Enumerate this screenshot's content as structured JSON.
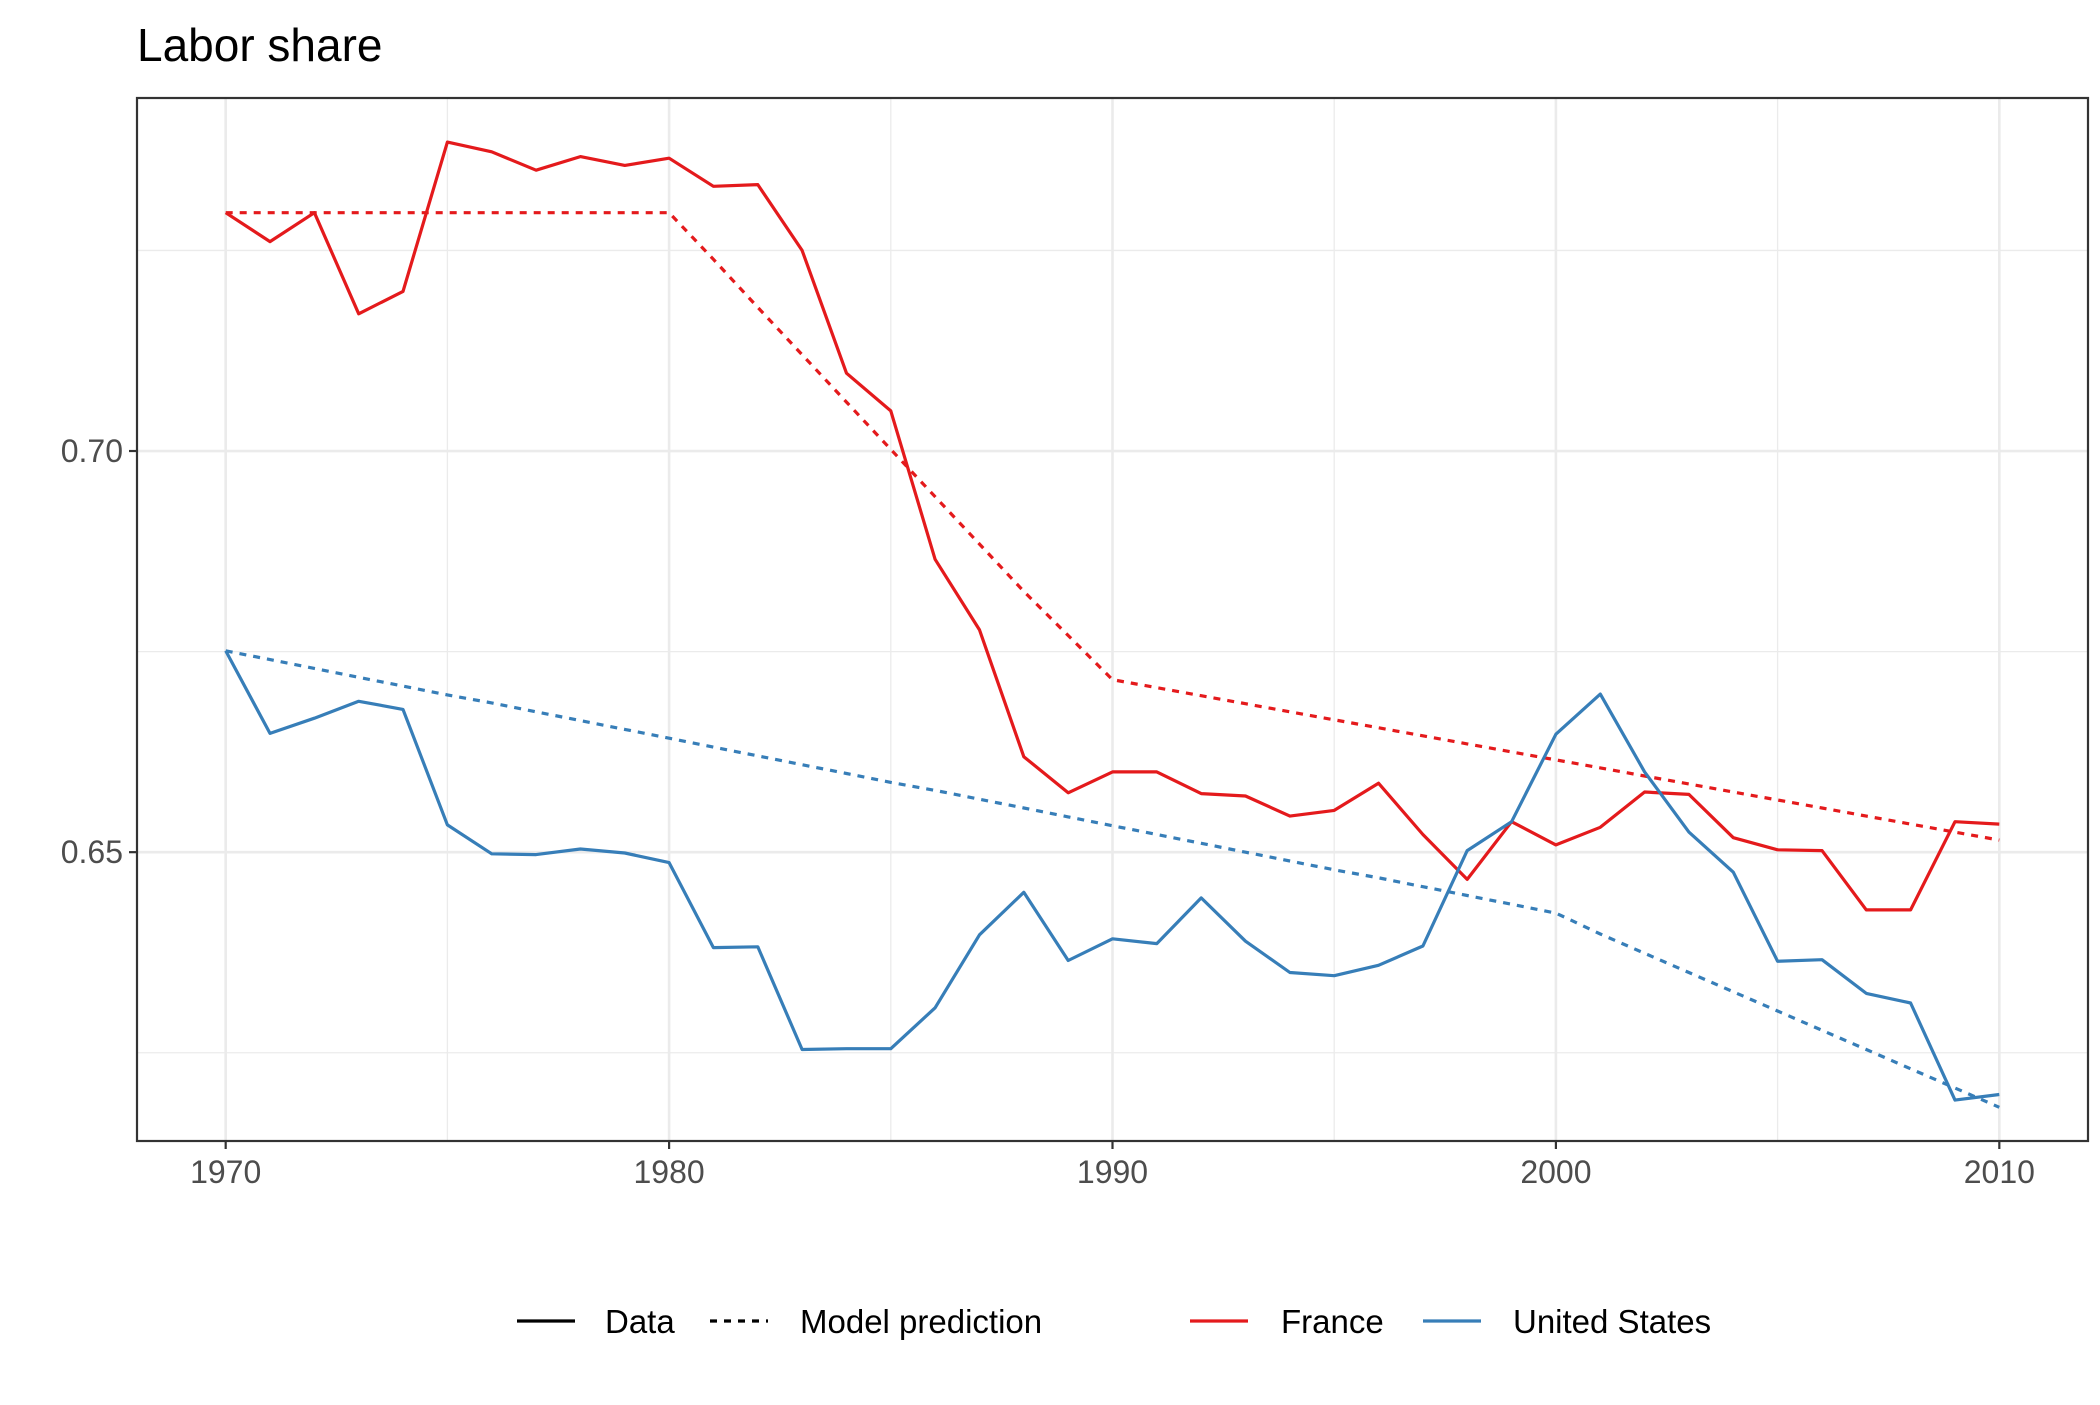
{
  "chart_data": {
    "type": "line",
    "title": "Labor share",
    "xlabel": "",
    "ylabel": "",
    "xlim": [
      1968,
      2012
    ],
    "ylim": [
      0.614,
      0.744
    ],
    "x_ticks": [
      1970,
      1980,
      1990,
      2000,
      2010
    ],
    "x_tick_labels": [
      "1970",
      "1980",
      "1990",
      "2000",
      "2010"
    ],
    "y_ticks": [
      0.65,
      0.7
    ],
    "y_tick_labels": [
      "0.65",
      "0.70"
    ],
    "y_minor_ticks": [
      0.625,
      0.675,
      0.725
    ],
    "grid": true,
    "legend_position": "bottom",
    "colors": {
      "France": "#e41a1c",
      "United States": "#377eb8"
    },
    "legend": {
      "linetype_items": [
        {
          "label": "Data",
          "dash": "solid"
        },
        {
          "label": "Model prediction",
          "dash": "dotted"
        }
      ],
      "color_items": [
        {
          "label": "France",
          "color": "#e41a1c"
        },
        {
          "label": "United States",
          "color": "#377eb8"
        }
      ]
    },
    "series": [
      {
        "country": "France",
        "type": "Data",
        "dash": "solid",
        "color": "#e41a1c",
        "x": [
          1970,
          1971,
          1972,
          1973,
          1974,
          1975,
          1976,
          1977,
          1978,
          1979,
          1980,
          1981,
          1982,
          1983,
          1984,
          1985,
          1986,
          1987,
          1988,
          1989,
          1990,
          1991,
          1992,
          1993,
          1994,
          1995,
          1996,
          1997,
          1998,
          1999,
          2000,
          2001,
          2002,
          2003,
          2004,
          2005,
          2006,
          2007,
          2008,
          2009,
          2010
        ],
        "values": [
          0.7297,
          0.7261,
          0.7297,
          0.7171,
          0.7199,
          0.7385,
          0.7373,
          0.735,
          0.7367,
          0.7356,
          0.7365,
          0.733,
          0.7332,
          0.725,
          0.7097,
          0.705,
          0.6865,
          0.6777,
          0.6619,
          0.6574,
          0.66,
          0.66,
          0.6573,
          0.657,
          0.6545,
          0.6552,
          0.6586,
          0.6522,
          0.6466,
          0.6538,
          0.6509,
          0.6531,
          0.6575,
          0.6572,
          0.6518,
          0.6503,
          0.6502,
          0.6428,
          0.6428,
          0.6538,
          0.6535
        ]
      },
      {
        "country": "France",
        "type": "Model prediction",
        "dash": "dotted",
        "color": "#e41a1c",
        "x": [
          1970,
          1971,
          1972,
          1973,
          1974,
          1975,
          1976,
          1977,
          1978,
          1979,
          1980,
          1981,
          1982,
          1983,
          1984,
          1985,
          1986,
          1987,
          1988,
          1989,
          1990,
          1991,
          1992,
          1993,
          1994,
          1995,
          1996,
          1997,
          1998,
          1999,
          2000,
          2001,
          2002,
          2003,
          2004,
          2005,
          2006,
          2007,
          2008,
          2009,
          2010
        ],
        "values": [
          0.7297,
          0.7297,
          0.7297,
          0.7297,
          0.7297,
          0.7297,
          0.7297,
          0.7297,
          0.7297,
          0.7297,
          0.7297,
          0.7239,
          0.7179,
          0.712,
          0.7061,
          0.7002,
          0.6943,
          0.6884,
          0.6825,
          0.677,
          0.6715,
          0.6705,
          0.6695,
          0.6685,
          0.6675,
          0.6665,
          0.6655,
          0.6645,
          0.6635,
          0.6625,
          0.6615,
          0.6605,
          0.6595,
          0.6585,
          0.6575,
          0.6565,
          0.6555,
          0.6545,
          0.6535,
          0.6525,
          0.6515
        ]
      },
      {
        "country": "United States",
        "type": "Data",
        "dash": "solid",
        "color": "#377eb8",
        "x": [
          1970,
          1971,
          1972,
          1973,
          1974,
          1975,
          1976,
          1977,
          1978,
          1979,
          1980,
          1981,
          1982,
          1983,
          1984,
          1985,
          1986,
          1987,
          1988,
          1989,
          1990,
          1991,
          1992,
          1993,
          1994,
          1995,
          1996,
          1997,
          1998,
          1999,
          2000,
          2001,
          2002,
          2003,
          2004,
          2005,
          2006,
          2007,
          2008,
          2009,
          2010
        ],
        "values": [
          0.6751,
          0.6648,
          0.6667,
          0.6688,
          0.6678,
          0.6534,
          0.6498,
          0.6497,
          0.6504,
          0.6499,
          0.6487,
          0.6381,
          0.6382,
          0.6254,
          0.6255,
          0.6255,
          0.6306,
          0.6397,
          0.645,
          0.6365,
          0.6392,
          0.6386,
          0.6443,
          0.6389,
          0.635,
          0.6346,
          0.6359,
          0.6383,
          0.6502,
          0.6538,
          0.6647,
          0.6697,
          0.66,
          0.6525,
          0.6475,
          0.6364,
          0.6366,
          0.6324,
          0.6312,
          0.6191,
          0.6198
        ]
      },
      {
        "country": "United States",
        "type": "Model prediction",
        "dash": "dotted",
        "color": "#377eb8",
        "x": [
          1970,
          1971,
          1972,
          1973,
          1974,
          1975,
          1976,
          1977,
          1978,
          1979,
          1980,
          1981,
          1982,
          1983,
          1984,
          1985,
          1986,
          1987,
          1988,
          1989,
          1990,
          1991,
          1992,
          1993,
          1994,
          1995,
          1996,
          1997,
          1998,
          1999,
          2000,
          2001,
          2002,
          2003,
          2004,
          2005,
          2006,
          2007,
          2008,
          2009,
          2010
        ],
        "values": [
          0.6751,
          0.674,
          0.6729,
          0.6718,
          0.6707,
          0.6696,
          0.6686,
          0.6675,
          0.6664,
          0.6653,
          0.6642,
          0.6631,
          0.662,
          0.6609,
          0.6598,
          0.6587,
          0.6577,
          0.6566,
          0.6555,
          0.6544,
          0.6533,
          0.6522,
          0.6511,
          0.65,
          0.6489,
          0.6478,
          0.6468,
          0.6457,
          0.6446,
          0.6435,
          0.6424,
          0.6398,
          0.6374,
          0.635,
          0.6326,
          0.6302,
          0.6278,
          0.6254,
          0.623,
          0.6206,
          0.6182
        ]
      }
    ]
  }
}
